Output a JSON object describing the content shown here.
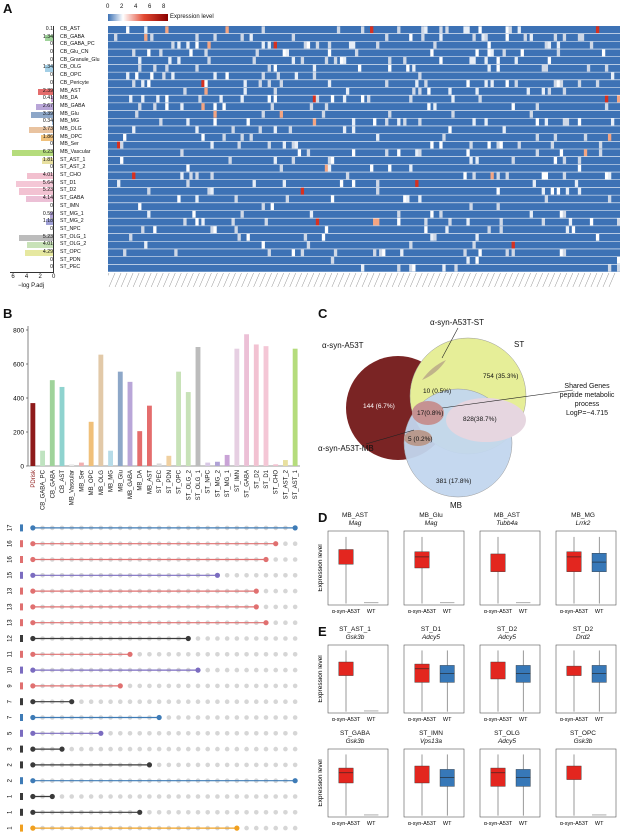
{
  "panels": {
    "a": "A",
    "b": "B",
    "c": "C",
    "d": "D",
    "e": "E"
  },
  "panelA": {
    "legend_title": "Expression level",
    "legend_ticks": [
      "0",
      "2",
      "4",
      "6",
      "8"
    ],
    "xaxis_label": "−log P.adj",
    "xaxis_ticks": [
      "6",
      "4",
      "2",
      "0"
    ],
    "rows": [
      {
        "name": "CB_AST",
        "p": "0.1",
        "color": "#e8b0b0"
      },
      {
        "name": "CB_GABA",
        "p": "1.34",
        "color": "#9fd39a"
      },
      {
        "name": "CB_GABA_PC",
        "p": "0",
        "color": "#cfcfcf"
      },
      {
        "name": "CB_Glu_CN",
        "p": "0",
        "color": "#cfcfcf"
      },
      {
        "name": "CB_Granule_Glu",
        "p": "0",
        "color": "#cfcfcf"
      },
      {
        "name": "CB_OLG",
        "p": "1.34",
        "color": "#a3cfe6"
      },
      {
        "name": "CB_OPC",
        "p": "0",
        "color": "#cfcfcf"
      },
      {
        "name": "CB_Pericyte",
        "p": "0",
        "color": "#cfcfcf"
      },
      {
        "name": "MB_AST",
        "p": "2.39",
        "color": "#e46d6d"
      },
      {
        "name": "MB_DA",
        "p": "0.41",
        "color": "#c9a3d6"
      },
      {
        "name": "MB_GABA",
        "p": "2.67",
        "color": "#b9a6d8"
      },
      {
        "name": "MB_Glu",
        "p": "3.39",
        "color": "#8da7c8"
      },
      {
        "name": "MB_MG",
        "p": "0.34",
        "color": "#a3bfe0"
      },
      {
        "name": "MB_OLG",
        "p": "3.73",
        "color": "#e9c3a0"
      },
      {
        "name": "MB_OPC",
        "p": "1.86",
        "color": "#f0c07a"
      },
      {
        "name": "MB_Ser",
        "p": "0",
        "color": "#cfcfcf"
      },
      {
        "name": "MB_Vascular",
        "p": "6.23",
        "color": "#b5dc7c"
      },
      {
        "name": "ST_AST_1",
        "p": "1.81",
        "color": "#e8e0a0"
      },
      {
        "name": "ST_AST_2",
        "p": "0",
        "color": "#cfcfcf"
      },
      {
        "name": "ST_CHO",
        "p": "4.01",
        "color": "#f2c0cf"
      },
      {
        "name": "ST_D1",
        "p": "5.64",
        "color": "#f4c7d6"
      },
      {
        "name": "ST_D2",
        "p": "5.23",
        "color": "#f2c2d2"
      },
      {
        "name": "ST_GABA",
        "p": "4.14",
        "color": "#ecc0d6"
      },
      {
        "name": "ST_IMN",
        "p": "0",
        "color": "#cfcfcf"
      },
      {
        "name": "ST_MG_1",
        "p": "0.59",
        "color": "#b0a2d6"
      },
      {
        "name": "ST_MG_2",
        "p": "1.18",
        "color": "#9fa0d6"
      },
      {
        "name": "ST_NPC",
        "p": "0",
        "color": "#cfcfcf"
      },
      {
        "name": "ST_OLG_1",
        "p": "5.23",
        "color": "#bcbcbc"
      },
      {
        "name": "ST_OLG_2",
        "p": "4.01",
        "color": "#c8e2b8"
      },
      {
        "name": "ST_OPC",
        "p": "4.29",
        "color": "#e6e8a0"
      },
      {
        "name": "ST_PDN",
        "p": "0",
        "color": "#cfcfcf"
      },
      {
        "name": "ST_PEC",
        "p": "0",
        "color": "#cfcfcf"
      }
    ]
  },
  "panelB": {
    "yticks": [
      "800",
      "600",
      "400",
      "200",
      "0"
    ],
    "categories": [
      "PDrisk",
      "CB_GABA_PC",
      "CB_GABA",
      "CB_AST",
      "MB_Vascular",
      "MB_Ser",
      "MB_OPC",
      "MB_OLG",
      "MB_MG",
      "MB_Glu",
      "MB_GABA",
      "MB_DA",
      "MB_AST",
      "ST_PEC",
      "ST_PDN",
      "ST_OPC",
      "ST_OLG_2",
      "ST_OLG_1",
      "ST_NPC",
      "ST_MG_2",
      "ST_MG_1",
      "ST_IMN",
      "ST_GABA",
      "ST_D2",
      "ST_D1",
      "ST_CHO",
      "ST_AST_2",
      "ST_AST_1"
    ],
    "values": [
      370,
      90,
      505,
      465,
      10,
      20,
      260,
      655,
      90,
      555,
      495,
      205,
      355,
      15,
      60,
      555,
      435,
      700,
      20,
      25,
      65,
      690,
      775,
      715,
      705,
      10,
      35,
      690
    ],
    "colors": [
      "#8e1a1a",
      "#bfe3c0",
      "#9fd39a",
      "#8fd3cf",
      "#e9e9e9",
      "#f0b0b0",
      "#f0c07a",
      "#e2c9a8",
      "#b6dbe8",
      "#8da7c8",
      "#b9a6d8",
      "#e46d6d",
      "#e46d6d",
      "#d9d9d9",
      "#f0d0a0",
      "#c8e2b8",
      "#c8e2b8",
      "#bcbcbc",
      "#d9c9e6",
      "#b0a2d6",
      "#c9a3d6",
      "#e6cfe2",
      "#ecc0d6",
      "#f2c2d2",
      "#f4c7d6",
      "#f2c0cf",
      "#e8e0a0",
      "#b5dc7c"
    ],
    "set_counts": [
      "17",
      "16",
      "16",
      "15",
      "13",
      "13",
      "13",
      "12",
      "11",
      "10",
      "9",
      "7",
      "7",
      "5",
      "3",
      "2",
      "2",
      "1",
      "1",
      "1"
    ],
    "set_colors": [
      "#3e7bb6",
      "#e07070",
      "#e07070",
      "#7b6cc0",
      "#e07070",
      "#e07070",
      "#e07070",
      "#3a3a3a",
      "#e07070",
      "#7b6cc0",
      "#e07070",
      "#3a3a3a",
      "#3e7bb6",
      "#7b6cc0",
      "#3a3a3a",
      "#3a3a3a",
      "#3e7bb6",
      "#3a3a3a",
      "#3a3a3a",
      "#f0a020"
    ]
  },
  "panelC": {
    "label_a53t": "α-syn-A53T",
    "label_st": "ST",
    "label_mb": "MB",
    "label_a53t_st": "α-syn-A53T-ST",
    "label_a53t_mb": "α-syn-A53T-MB",
    "shared_title": "Shared Genes",
    "shared_process": "peptide metabolic process",
    "shared_logp": "LogP=−4.715",
    "n_a53t": "144 (6.7%)",
    "n_st": "754 (35.3%)",
    "n_mb": "381 (17.8%)",
    "n_a53t_st": "10 (0.5%)",
    "n_all": "17(0.8%)",
    "n_a53t_mb": "5 (0.2%)",
    "n_st_mb": "828(38.7%)"
  },
  "panelD": {
    "ylabel": "Expression level",
    "plots": [
      {
        "cell": "MB_AST",
        "gene": "Mag"
      },
      {
        "cell": "MB_Glu",
        "gene": "Mag"
      },
      {
        "cell": "MB_AST",
        "gene": "Tubb4a"
      },
      {
        "cell": "MB_MG",
        "gene": "Lrrk2"
      }
    ]
  },
  "panelE": {
    "ylabel": "Expression level",
    "plots": [
      {
        "cell": "ST_AST_1",
        "gene": "Gsk3b"
      },
      {
        "cell": "ST_D1",
        "gene": "Adcy5"
      },
      {
        "cell": "ST_D2",
        "gene": "Adcy5"
      },
      {
        "cell": "ST_D2",
        "gene": "Drd2"
      },
      {
        "cell": "ST_GABA",
        "gene": "Gsk3b"
      },
      {
        "cell": "ST_IMN",
        "gene": "Vps13a"
      },
      {
        "cell": "ST_OLG",
        "gene": "Adcy5"
      },
      {
        "cell": "ST_OPC",
        "gene": "Gsk3b"
      }
    ]
  },
  "box_labels": {
    "a53t": "α-syn-A53T",
    "wt": "WT"
  }
}
